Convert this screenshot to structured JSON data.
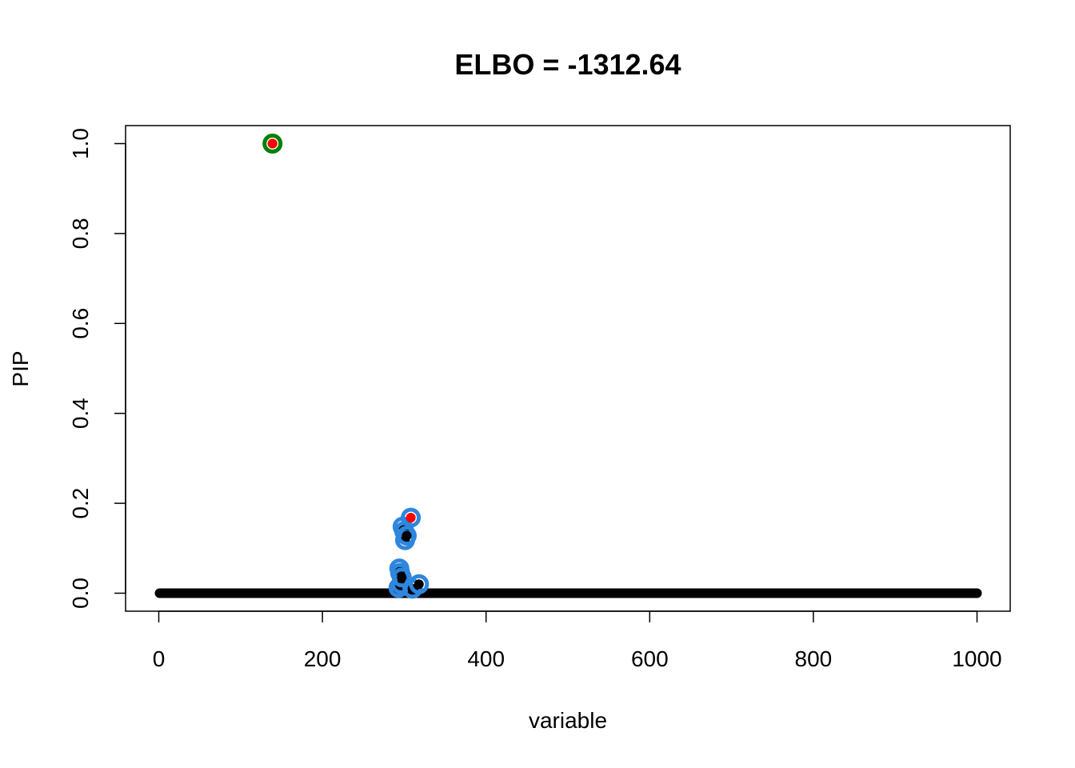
{
  "chart_data": {
    "type": "scatter",
    "title": "ELBO = -1312.64",
    "xlabel": "variable",
    "ylabel": "PIP",
    "xlim": [
      0,
      1000
    ],
    "ylim": [
      0,
      1
    ],
    "x_ticks": [
      0,
      200,
      400,
      600,
      800,
      1000
    ],
    "y_ticks": [
      0.0,
      0.2,
      0.4,
      0.6,
      0.8,
      1.0
    ],
    "x_tick_labels": [
      "0",
      "200",
      "400",
      "600",
      "800",
      "1000"
    ],
    "y_tick_labels": [
      "0.0",
      "0.2",
      "0.4",
      "0.6",
      "0.8",
      "1.0"
    ],
    "grid": false,
    "baseline": {
      "description_of_mark": "black filled points",
      "x_range": [
        1,
        1000
      ],
      "y": 0.0,
      "color": "#000000"
    },
    "credible_sets": [
      {
        "color": "#008000",
        "points": [
          {
            "x": 139,
            "y": 1.0
          }
        ]
      },
      {
        "color": "#2e86de",
        "points": [
          {
            "x": 293,
            "y": 0.012
          },
          {
            "x": 294,
            "y": 0.055
          },
          {
            "x": 295,
            "y": 0.045
          },
          {
            "x": 296,
            "y": 0.02
          },
          {
            "x": 297,
            "y": 0.035
          },
          {
            "x": 298,
            "y": 0.148
          },
          {
            "x": 300,
            "y": 0.138
          },
          {
            "x": 301,
            "y": 0.118
          },
          {
            "x": 303,
            "y": 0.128
          },
          {
            "x": 308,
            "y": 0.168
          },
          {
            "x": 310,
            "y": 0.01
          },
          {
            "x": 318,
            "y": 0.02
          }
        ]
      }
    ],
    "highlighted": {
      "color": "#ff0000",
      "points": [
        {
          "x": 139,
          "y": 1.0
        },
        {
          "x": 308,
          "y": 0.168
        }
      ]
    }
  }
}
